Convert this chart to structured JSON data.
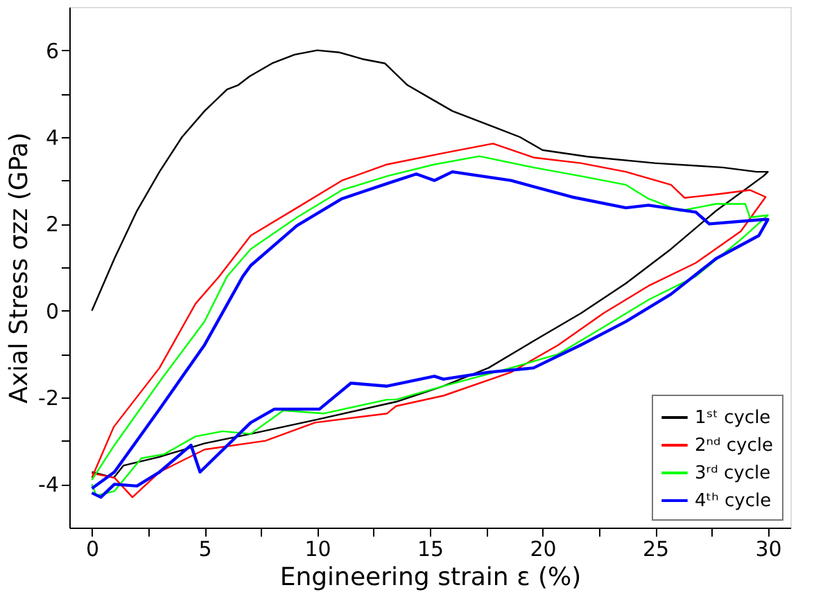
{
  "chart_data": {
    "type": "line",
    "xlabel": "Engineering strain ε (%)",
    "ylabel": "Axial Stress σzz (GPa)",
    "xlim": [
      -1,
      31
    ],
    "ylim": [
      -5,
      7
    ],
    "xticks": [
      0,
      {
        "value": 2.5,
        "label": null
      },
      5,
      {
        "value": 7.5,
        "label": null
      },
      10,
      {
        "value": 12.5,
        "label": null
      },
      15,
      {
        "value": 17.5,
        "label": null
      },
      20,
      {
        "value": 22.5,
        "label": null
      },
      25,
      {
        "value": 27.5,
        "label": null
      },
      30
    ],
    "yticks": [
      -4,
      {
        "value": -3,
        "label": null
      },
      -2,
      {
        "value": -1,
        "label": null
      },
      0,
      {
        "value": 1,
        "label": null
      },
      2,
      {
        "value": 3,
        "label": null
      },
      4,
      {
        "value": 5,
        "label": null
      },
      6
    ],
    "grid": false,
    "legend": "bottom right",
    "line_style": "solid",
    "marker": "none",
    "series": [
      {
        "name": "1ˢᵗ cycle",
        "color": "#000000",
        "x": [
          0,
          1,
          2,
          3,
          4,
          5,
          6,
          6.5,
          7,
          8,
          9,
          10,
          11,
          12,
          13,
          14,
          15,
          16,
          17,
          18,
          19,
          20,
          22,
          25,
          28,
          29.5,
          30,
          29.8,
          27.7,
          25.7,
          23.7,
          21.7,
          19.6,
          17.6,
          15.6,
          13.5,
          9.9,
          7.05,
          5.0,
          3.0,
          1.4,
          0.97,
          0
        ],
        "values": [
          0,
          1.2,
          2.3,
          3.2,
          4.0,
          4.6,
          5.1,
          5.2,
          5.4,
          5.7,
          5.9,
          6.0,
          5.95,
          5.8,
          5.7,
          5.2,
          4.9,
          4.6,
          4.4,
          4.2,
          4.0,
          3.7,
          3.55,
          3.4,
          3.3,
          3.2,
          3.2,
          3.1,
          2.3,
          1.42,
          0.63,
          -0.06,
          -0.7,
          -1.32,
          -1.74,
          -2.1,
          -2.52,
          -2.84,
          -3.06,
          -3.37,
          -3.57,
          -3.85,
          -3.72
        ]
      },
      {
        "name": "2ⁿᵈ cycle",
        "color": "#ff0000",
        "x": [
          0,
          0.97,
          3,
          4.6,
          5.65,
          7.05,
          9.1,
          11.1,
          13.1,
          15.6,
          17.8,
          19.6,
          21.7,
          23.7,
          25.7,
          26.3,
          27.7,
          29.2,
          29.9,
          28.8,
          26.8,
          24.7,
          22.7,
          20.7,
          18.6,
          15.6,
          13.5,
          13.1,
          9.9,
          7.7,
          5,
          3,
          1.8,
          1,
          0
        ],
        "values": [
          -3.85,
          -2.68,
          -1.32,
          0.16,
          0.79,
          1.73,
          2.37,
          3.0,
          3.37,
          3.63,
          3.85,
          3.53,
          3.4,
          3.2,
          2.9,
          2.6,
          2.68,
          2.78,
          2.62,
          1.83,
          1.1,
          0.57,
          -0.06,
          -0.79,
          -1.42,
          -1.96,
          -2.2,
          -2.37,
          -2.58,
          -3.0,
          -3.2,
          -3.72,
          -4.3,
          -3.85,
          -3.75
        ]
      },
      {
        "name": "3ʳᵈ cycle",
        "color": "#00ff00",
        "x": [
          0,
          1,
          3,
          5,
          6,
          7.05,
          9.1,
          11.1,
          13.1,
          15.2,
          17.2,
          19.6,
          21.7,
          23.7,
          24.7,
          26.1,
          27.7,
          29,
          29.2,
          30,
          28.8,
          26.8,
          24.7,
          22.7,
          20.7,
          18.6,
          15.6,
          13.5,
          13.1,
          10.3,
          8.5,
          7.05,
          5.8,
          4.6,
          3.2,
          2.2,
          1,
          0.2,
          0
        ],
        "values": [
          -3.9,
          -3.1,
          -1.64,
          -0.25,
          0.79,
          1.42,
          2.15,
          2.78,
          3.1,
          3.37,
          3.56,
          3.3,
          3.1,
          2.9,
          2.58,
          2.3,
          2.46,
          2.46,
          2.15,
          2.2,
          1.64,
          0.79,
          0.25,
          -0.38,
          -1.0,
          -1.32,
          -1.74,
          -2.05,
          -2.05,
          -2.37,
          -2.3,
          -2.84,
          -2.78,
          -2.9,
          -3.31,
          -3.4,
          -4.16,
          -4.26,
          -4.0
        ]
      },
      {
        "name": "4ᵗʰ cycle",
        "color": "#0000ff",
        "x": [
          0,
          1,
          3,
          5,
          6.7,
          7.05,
          9.1,
          11.1,
          13.1,
          14.4,
          15.2,
          16,
          18.6,
          21.3,
          23.7,
          24.7,
          26.8,
          27.4,
          29.8,
          30,
          29.6,
          27.7,
          25.7,
          23.7,
          21.7,
          19.6,
          17.6,
          15.6,
          15.2,
          13.1,
          11.5,
          10.1,
          8.1,
          7.05,
          4.8,
          4.4,
          3,
          2,
          1,
          0.4,
          0
        ],
        "values": [
          -4.1,
          -3.72,
          -2.27,
          -0.79,
          0.79,
          1.04,
          1.96,
          2.58,
          2.93,
          3.15,
          3.0,
          3.2,
          3.0,
          2.62,
          2.37,
          2.43,
          2.27,
          2.0,
          2.1,
          2.1,
          1.73,
          1.2,
          0.38,
          -0.25,
          -0.79,
          -1.32,
          -1.42,
          -1.58,
          -1.51,
          -1.74,
          -1.67,
          -2.27,
          -2.27,
          -2.58,
          -3.72,
          -3.1,
          -3.72,
          -4.04,
          -4.0,
          -4.3,
          -4.2
        ]
      }
    ]
  }
}
